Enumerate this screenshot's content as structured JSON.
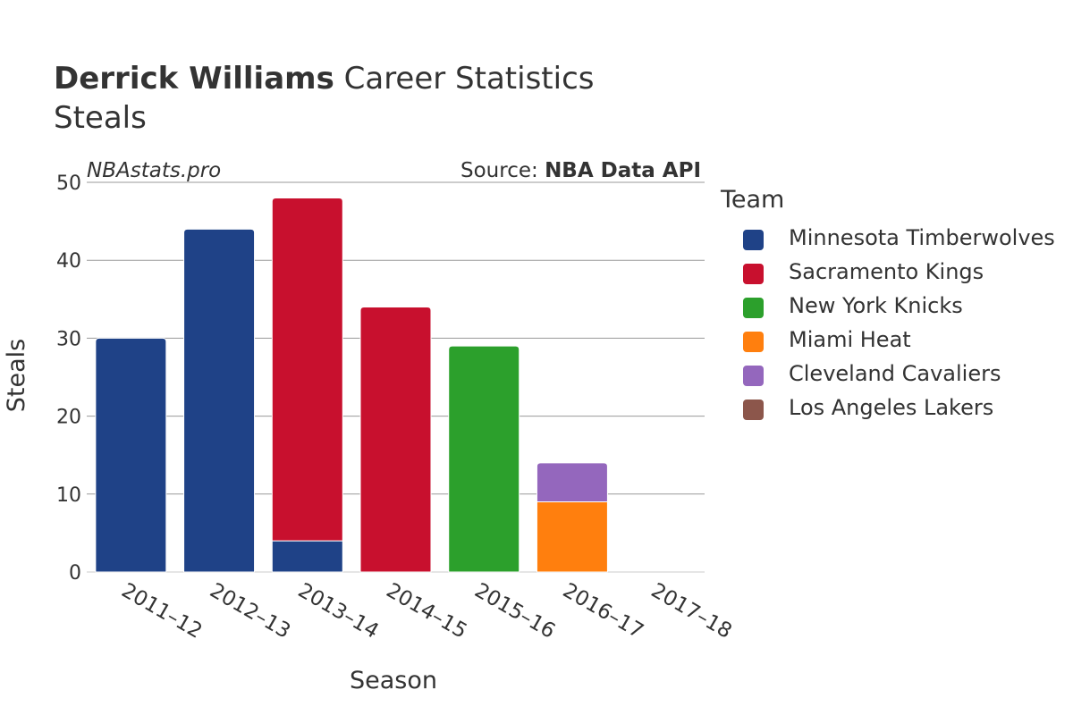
{
  "title": {
    "bold": "Derrick Williams",
    "rest": " Career Statistics",
    "subtitle": "Steals"
  },
  "watermark": "NBAstats.pro",
  "source": {
    "prefix": "Source: ",
    "name": "NBA Data API"
  },
  "legend": {
    "title": "Team",
    "items": [
      {
        "label": "Minnesota Timberwolves",
        "color": "#1f4287"
      },
      {
        "label": "Sacramento Kings",
        "color": "#c8102e"
      },
      {
        "label": "New York Knicks",
        "color": "#2ca02c"
      },
      {
        "label": "Miami Heat",
        "color": "#ff7f0e"
      },
      {
        "label": "Cleveland Cavaliers",
        "color": "#9467bd"
      },
      {
        "label": "Los Angeles Lakers",
        "color": "#8c564b"
      }
    ]
  },
  "chart_data": {
    "type": "bar",
    "stacked": true,
    "xlabel": "Season",
    "ylabel": "Steals",
    "ylim": [
      0,
      50
    ],
    "yticks": [
      0,
      10,
      20,
      30,
      40,
      50
    ],
    "grid": true,
    "legend_position": "right",
    "categories": [
      "2011–12",
      "2012–13",
      "2013–14",
      "2014–15",
      "2015–16",
      "2016–17",
      "2017–18"
    ],
    "series": [
      {
        "name": "Minnesota Timberwolves",
        "color": "#1f4287",
        "values": [
          30,
          44,
          4,
          0,
          0,
          0,
          0
        ]
      },
      {
        "name": "Sacramento Kings",
        "color": "#c8102e",
        "values": [
          0,
          0,
          44,
          34,
          0,
          0,
          0
        ]
      },
      {
        "name": "New York Knicks",
        "color": "#2ca02c",
        "values": [
          0,
          0,
          0,
          0,
          29,
          0,
          0
        ]
      },
      {
        "name": "Miami Heat",
        "color": "#ff7f0e",
        "values": [
          0,
          0,
          0,
          0,
          0,
          9,
          0
        ]
      },
      {
        "name": "Cleveland Cavaliers",
        "color": "#9467bd",
        "values": [
          0,
          0,
          0,
          0,
          0,
          5,
          0
        ]
      },
      {
        "name": "Los Angeles Lakers",
        "color": "#8c564b",
        "values": [
          0,
          0,
          0,
          0,
          0,
          0,
          0
        ]
      }
    ]
  }
}
